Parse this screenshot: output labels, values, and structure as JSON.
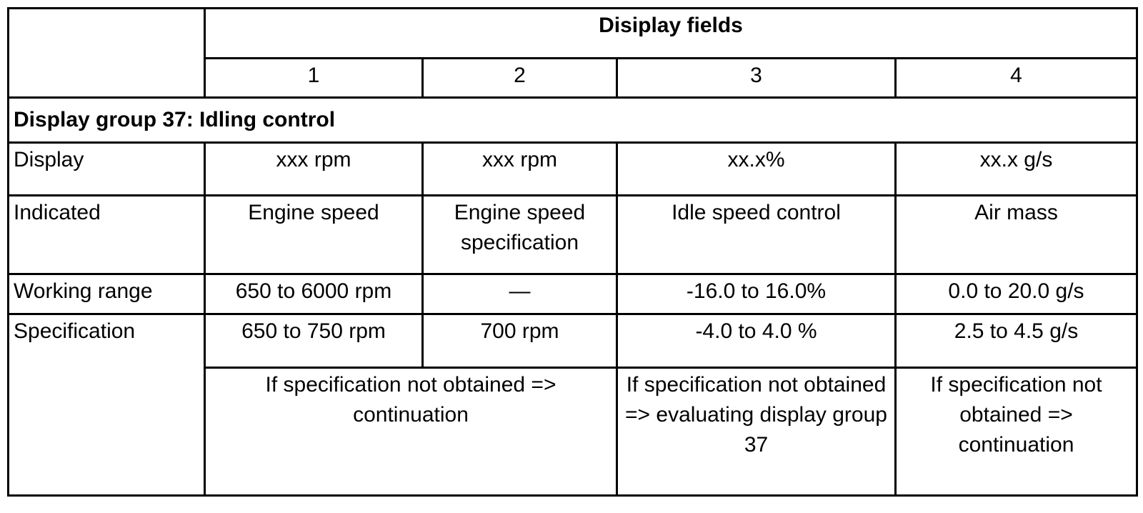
{
  "header": {
    "title": "Disiplay fields",
    "columns": [
      "1",
      "2",
      "3",
      "4"
    ]
  },
  "group_title": "Display group 37: Idling control",
  "rows": [
    {
      "label": "Display",
      "cells": [
        "xxx rpm",
        "xxx rpm",
        "xx.x%",
        "xx.x g/s"
      ]
    },
    {
      "label": "Indicated",
      "cells": [
        "Engine speed",
        "Engine speed specification",
        "Idle speed control",
        "Air mass"
      ]
    },
    {
      "label": "Working range",
      "cells": [
        "650 to 6000 rpm",
        "—",
        "-16.0 to 16.0%",
        "0.0 to 20.0 g/s"
      ]
    },
    {
      "label": "Specification",
      "cells": [
        "650 to 750 rpm",
        "700 rpm",
        "-4.0 to 4.0 %",
        "2.5 to 4.5 g/s"
      ]
    }
  ],
  "notes": [
    "If specification not obtained => continuation",
    "If specification not obtained => evaluating display group 37",
    "If specification not obtained => continuation"
  ]
}
